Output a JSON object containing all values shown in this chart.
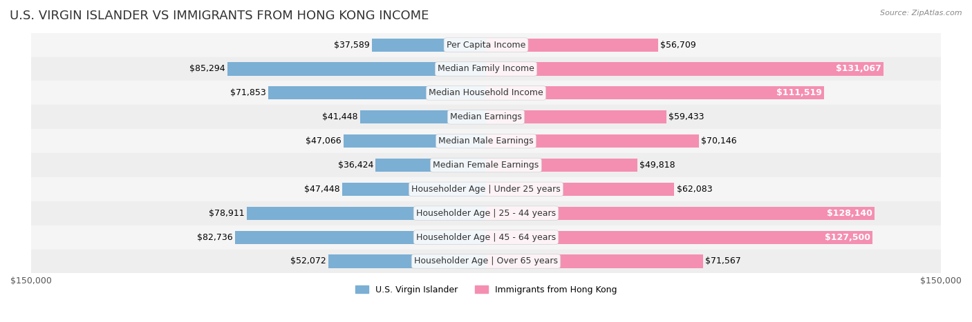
{
  "title": "U.S. VIRGIN ISLANDER VS IMMIGRANTS FROM HONG KONG INCOME",
  "source": "Source: ZipAtlas.com",
  "categories": [
    "Per Capita Income",
    "Median Family Income",
    "Median Household Income",
    "Median Earnings",
    "Median Male Earnings",
    "Median Female Earnings",
    "Householder Age | Under 25 years",
    "Householder Age | 25 - 44 years",
    "Householder Age | 45 - 64 years",
    "Householder Age | Over 65 years"
  ],
  "virgin_islander": [
    37589,
    85294,
    71853,
    41448,
    47066,
    36424,
    47448,
    78911,
    82736,
    52072
  ],
  "hong_kong": [
    56709,
    131067,
    111519,
    59433,
    70146,
    49818,
    62083,
    128140,
    127500,
    71567
  ],
  "vi_color": "#7bafd4",
  "hk_color": "#f48fb1",
  "vi_color_dark": "#5b9ec9",
  "hk_color_dark": "#e91e8c",
  "row_bg_light": "#f5f5f5",
  "row_bg_dark": "#eeeeee",
  "xlim": 150000,
  "label_fontsize": 9,
  "title_fontsize": 13,
  "bar_height": 0.55,
  "figsize": [
    14.06,
    4.67
  ],
  "dpi": 100
}
